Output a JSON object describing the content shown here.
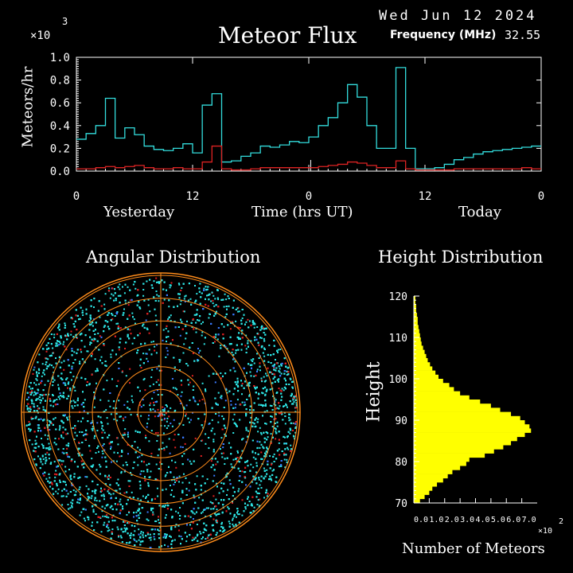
{
  "header": {
    "date": "Wed Jun 12 2024",
    "frequency_label": "Frequency (MHz)",
    "frequency_value": "32.55"
  },
  "colors": {
    "background": "#000000",
    "text": "#ffffff",
    "series_upper": "#33dddd",
    "series_lower": "#dd2222",
    "height_bars": "#ffff00",
    "polar_ring": "#ff8c1a",
    "polar_points_cyan": "#2ee6e6",
    "polar_points_red": "#e02020",
    "polar_points_blue": "#3a7bff"
  },
  "chart_data": [
    {
      "type": "line",
      "title": "Meteor Flux",
      "ylabel": "Meteors/hr",
      "yscale_label": "×10",
      "yscale_exponent": "3",
      "ylim": [
        0,
        1.0
      ],
      "yticks": [
        "0.0",
        "0.2",
        "0.4",
        "0.6",
        "0.8",
        "1.0"
      ],
      "xlabel": "Time (hrs UT)",
      "xticks": [
        "0",
        "12",
        "0",
        "12",
        "0"
      ],
      "xlim": [
        0,
        48
      ],
      "day_labels": [
        "Yesterday",
        "Today"
      ],
      "step": true,
      "series": [
        {
          "color": "#33dddd",
          "x": [
            0,
            1,
            2,
            3,
            4,
            5,
            6,
            7,
            8,
            9,
            10,
            11,
            12,
            13,
            14,
            15,
            16,
            17,
            18,
            19,
            20,
            21,
            22,
            23,
            24,
            25,
            26,
            27,
            28,
            29,
            30,
            31,
            32,
            33,
            34,
            35,
            36,
            37,
            38,
            39,
            40,
            41,
            42,
            43,
            44,
            45,
            46,
            47
          ],
          "values": [
            0.28,
            0.33,
            0.4,
            0.64,
            0.29,
            0.38,
            0.32,
            0.22,
            0.19,
            0.18,
            0.2,
            0.24,
            0.16,
            0.58,
            0.68,
            0.08,
            0.09,
            0.13,
            0.16,
            0.22,
            0.21,
            0.23,
            0.26,
            0.25,
            0.3,
            0.4,
            0.47,
            0.6,
            0.76,
            0.65,
            0.4,
            0.2,
            0.2,
            0.91,
            0.2,
            0.02,
            0.02,
            0.03,
            0.06,
            0.1,
            0.12,
            0.15,
            0.17,
            0.18,
            0.19,
            0.2,
            0.21,
            0.22
          ]
        },
        {
          "color": "#dd2222",
          "x": [
            0,
            1,
            2,
            3,
            4,
            5,
            6,
            7,
            8,
            9,
            10,
            11,
            12,
            13,
            14,
            15,
            16,
            17,
            18,
            19,
            20,
            21,
            22,
            23,
            24,
            25,
            26,
            27,
            28,
            29,
            30,
            31,
            32,
            33,
            34,
            35,
            36,
            37,
            38,
            39,
            40,
            41,
            42,
            43,
            44,
            45,
            46,
            47
          ],
          "values": [
            0.02,
            0.02,
            0.03,
            0.04,
            0.03,
            0.04,
            0.05,
            0.03,
            0.02,
            0.02,
            0.03,
            0.02,
            0.02,
            0.08,
            0.22,
            0.02,
            0.01,
            0.01,
            0.02,
            0.03,
            0.03,
            0.03,
            0.03,
            0.03,
            0.03,
            0.04,
            0.05,
            0.06,
            0.08,
            0.07,
            0.05,
            0.03,
            0.03,
            0.09,
            0.02,
            0.01,
            0.01,
            0.01,
            0.01,
            0.02,
            0.02,
            0.02,
            0.02,
            0.02,
            0.02,
            0.02,
            0.03,
            0.02
          ]
        }
      ]
    },
    {
      "type": "scatter",
      "title": "Angular Distribution",
      "polar": true,
      "rings": 6
    },
    {
      "type": "bar",
      "orientation": "horizontal",
      "title": "Height Distribution",
      "ylabel": "Height",
      "xlabel": "Number of Meteors",
      "xscale_label": "×10",
      "xscale_exponent": "2",
      "ylim": [
        70,
        120
      ],
      "yticks": [
        "120",
        "110",
        "100",
        "90",
        "80",
        "70"
      ],
      "xlim": [
        0,
        8
      ],
      "xticks": [
        "0.0",
        "1.0",
        "2.0",
        "3.0",
        "4.0",
        "5.0",
        "6.0",
        "7.0"
      ],
      "bin_centers": [
        70.5,
        71.5,
        72.5,
        73.5,
        74.5,
        75.5,
        76.5,
        77.5,
        78.5,
        79.5,
        80.5,
        81.5,
        82.5,
        83.5,
        84.5,
        85.5,
        86.5,
        87.5,
        88.5,
        89.5,
        90.5,
        91.5,
        92.5,
        93.5,
        94.5,
        95.5,
        96.5,
        97.5,
        98.5,
        99.5,
        100.5,
        101.5,
        102.5,
        103.5,
        104.5,
        105.5,
        106.5,
        107.5,
        108.5,
        109.5,
        110.5,
        111.5,
        112.5,
        113.5,
        114.5,
        115.5,
        116.5,
        117.5,
        118.5,
        119.5
      ],
      "values": [
        0.4,
        0.7,
        1.0,
        1.2,
        1.5,
        1.9,
        2.2,
        2.5,
        3.0,
        3.4,
        3.6,
        4.6,
        5.2,
        5.8,
        6.3,
        6.7,
        7.2,
        7.6,
        7.5,
        7.2,
        6.9,
        6.3,
        5.6,
        5.0,
        4.3,
        3.6,
        3.0,
        2.6,
        2.3,
        1.9,
        1.6,
        1.4,
        1.2,
        1.05,
        0.9,
        0.8,
        0.7,
        0.6,
        0.5,
        0.45,
        0.4,
        0.35,
        0.3,
        0.25,
        0.25,
        0.2,
        0.15,
        0.15,
        0.1,
        0.1
      ]
    }
  ]
}
